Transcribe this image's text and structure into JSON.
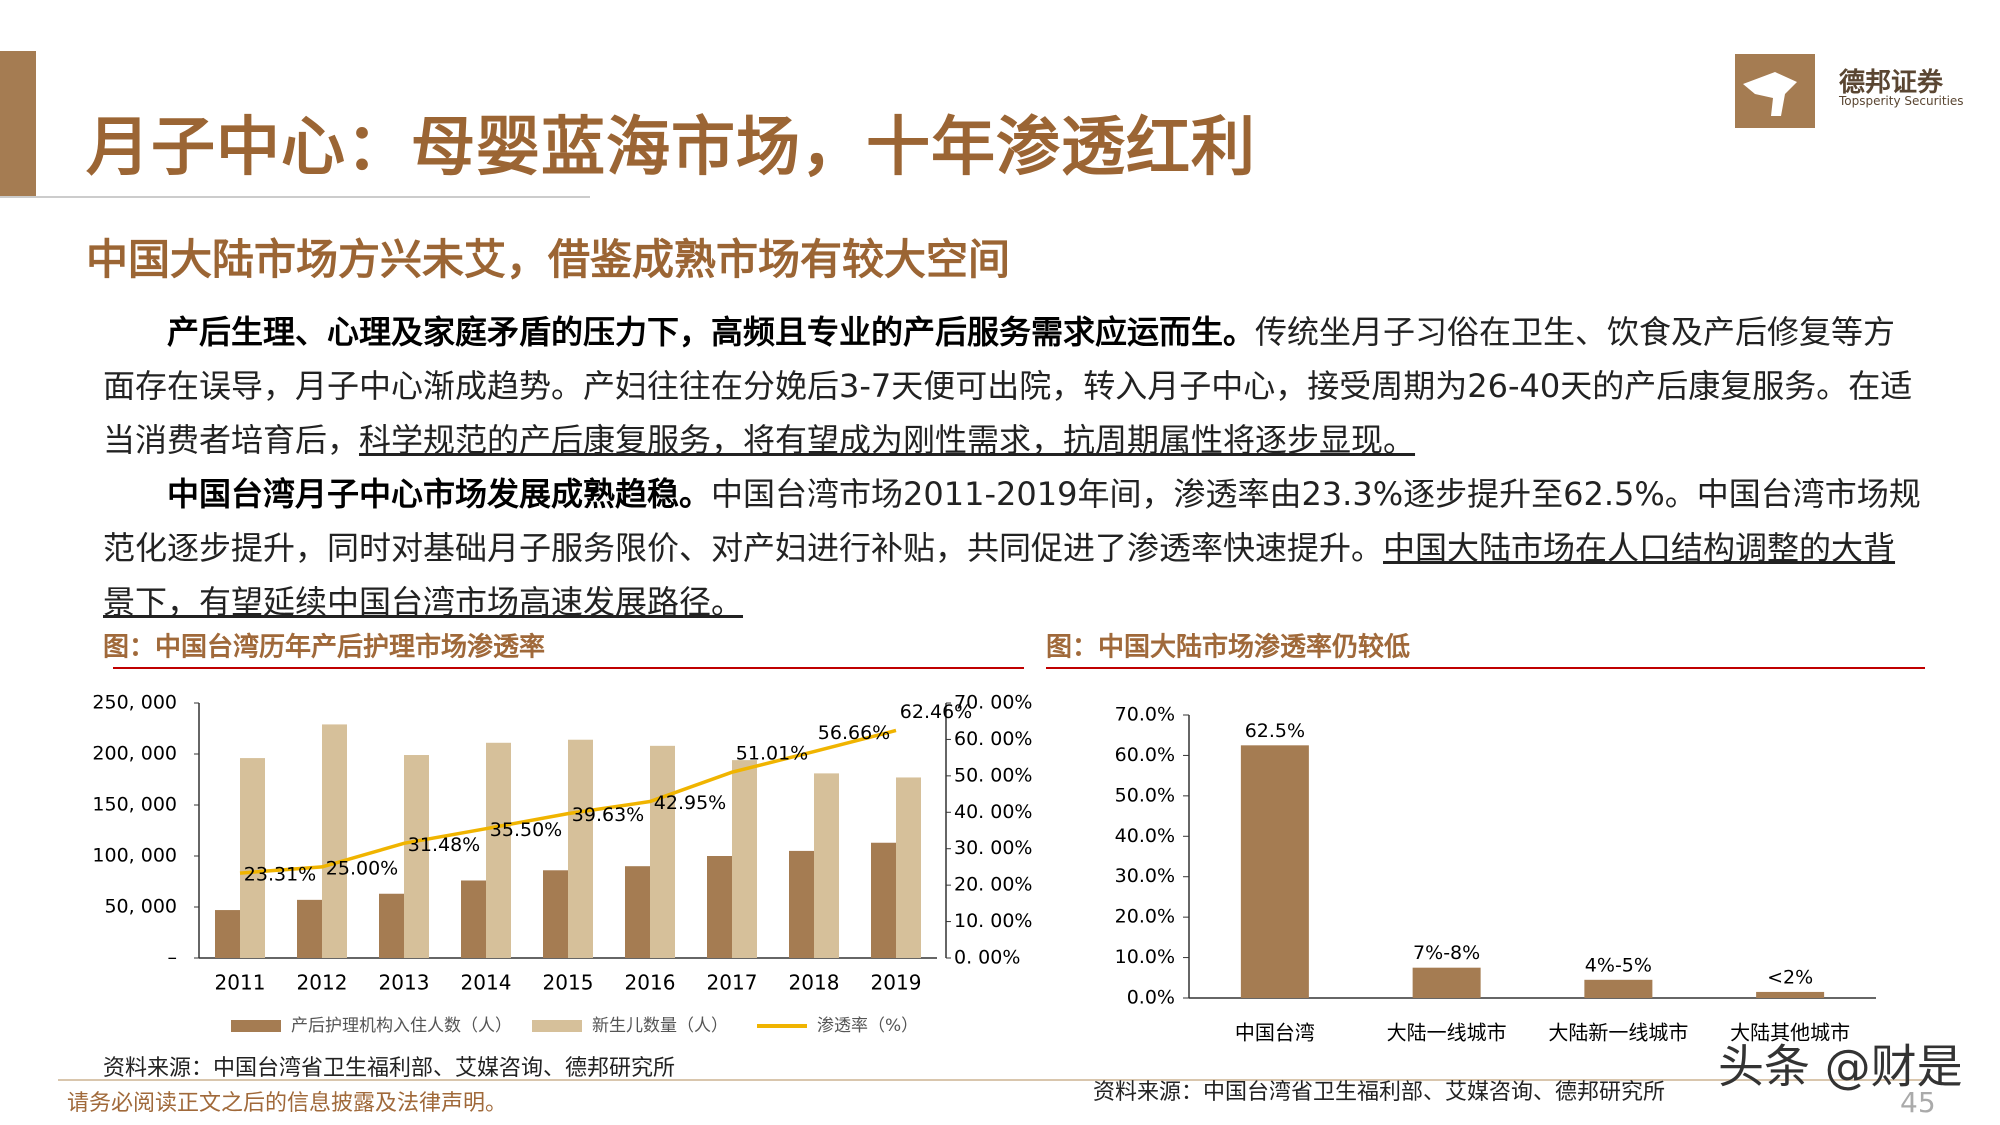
{
  "header": {
    "title": "月子中心：母婴蓝海市场，十年渗透红利",
    "subtitle": "中国大陆市场方兴未艾，借鉴成熟市场有较大空间",
    "brand": "德邦证券",
    "brand_en": "Topsperity Securities"
  },
  "paragraphs": [
    {
      "runs": [
        {
          "text": "产后生理、心理及家庭矛盾的压力下，高频且专业的产后服务需求应运而生。",
          "style": "bold"
        },
        {
          "text": "传统坐月子习俗在卫生、饮食及产后修复等方面存在误导，月子中心渐成趋势。产妇往往在分娩后3-7天便可出院，转入月子中心，接受周期为26-40天的产后康复服务。在适当消费者培育后，",
          "style": "normal"
        },
        {
          "text": "科学规范的产后康复服务，将有望成为刚性需求，抗周期属性将逐步显现。",
          "style": "underline"
        }
      ]
    },
    {
      "runs": [
        {
          "text": "中国台湾月子中心市场发展成熟趋稳。",
          "style": "bold"
        },
        {
          "text": "中国台湾市场2011-2019年间，渗透率由23.3%逐步提升至62.5%。中国台湾市场规范化逐步提升，同时对基础月子服务限价、对产妇进行补贴，共同促进了渗透率快速提升。",
          "style": "normal"
        },
        {
          "text": "中国大陆市场在人口结构调整的大背景下，有望延续中国台湾市场高速发展路径。",
          "style": "underline"
        }
      ]
    }
  ],
  "chart_data": [
    {
      "type": "combo",
      "title": "图：中国台湾历年产后护理市场渗透率",
      "categories": [
        "2011",
        "2012",
        "2013",
        "2014",
        "2015",
        "2016",
        "2017",
        "2018",
        "2019"
      ],
      "series": [
        {
          "name": "产后护理机构入住人数（人）",
          "color": "#a57c52",
          "values": [
            47000,
            57000,
            63000,
            76000,
            86000,
            90000,
            100000,
            105000,
            113000
          ]
        },
        {
          "name": "新生儿数量（人）",
          "color": "#d6c09a",
          "values": [
            196000,
            229000,
            199000,
            211000,
            214000,
            208000,
            194000,
            181000,
            177000
          ]
        },
        {
          "name": "渗透率（%）",
          "color": "#f0b400",
          "axis": "y2",
          "values": [
            23.31,
            25.0,
            31.48,
            35.5,
            39.63,
            42.95,
            51.01,
            56.66,
            62.46
          ],
          "value_labels": [
            "23.31%",
            "25.00%",
            "31.48%",
            "35.50%",
            "39.63%",
            "42.95%",
            "51.01%",
            "56.66%",
            "62.46%"
          ]
        }
      ],
      "ylim": [
        0,
        250000
      ],
      "yticks": [
        {
          "value": 0,
          "label": "–"
        },
        {
          "value": 50000,
          "label": "50, 000"
        },
        {
          "value": 100000,
          "label": "100, 000"
        },
        {
          "value": 150000,
          "label": "150, 000"
        },
        {
          "value": 200000,
          "label": "200, 000"
        },
        {
          "value": 250000,
          "label": "250, 000"
        }
      ],
      "y2lim": [
        0,
        70
      ],
      "y2ticks": [
        {
          "value": 0,
          "label": "0. 00%"
        },
        {
          "value": 10,
          "label": "10. 00%"
        },
        {
          "value": 20,
          "label": "20. 00%"
        },
        {
          "value": 30,
          "label": "30. 00%"
        },
        {
          "value": 40,
          "label": "40. 00%"
        },
        {
          "value": 50,
          "label": "50. 00%"
        },
        {
          "value": 60,
          "label": "60. 00%"
        },
        {
          "value": 70,
          "label": "70. 00%"
        }
      ],
      "grid": false,
      "source": "资料来源：中国台湾省卫生福利部、艾媒咨询、德邦研究所"
    },
    {
      "type": "bar",
      "title": "图：中国大陆市场渗透率仍较低",
      "categories": [
        "中国台湾",
        "大陆一线城市",
        "大陆新一线城市",
        "大陆其他城市"
      ],
      "values": [
        62.5,
        7.5,
        4.5,
        1.5
      ],
      "value_labels": [
        "62.5%",
        "7%-8%",
        "4%-5%",
        "<2%"
      ],
      "color": "#a57c52",
      "ylim": [
        0,
        70
      ],
      "yticks": [
        {
          "value": 0,
          "label": "0.0%"
        },
        {
          "value": 10,
          "label": "10.0%"
        },
        {
          "value": 20,
          "label": "20.0%"
        },
        {
          "value": 30,
          "label": "30.0%"
        },
        {
          "value": 40,
          "label": "40.0%"
        },
        {
          "value": 50,
          "label": "50.0%"
        },
        {
          "value": 60,
          "label": "60.0%"
        },
        {
          "value": 70,
          "label": "70.0%"
        }
      ],
      "grid": false,
      "source": "资料来源：中国台湾省卫生福利部、艾媒咨询、德邦研究所"
    }
  ],
  "footer": {
    "disclaimer": "请务必阅读正文之后的信息披露及法律声明。",
    "page": 45,
    "watermark": "头条 @财是"
  }
}
